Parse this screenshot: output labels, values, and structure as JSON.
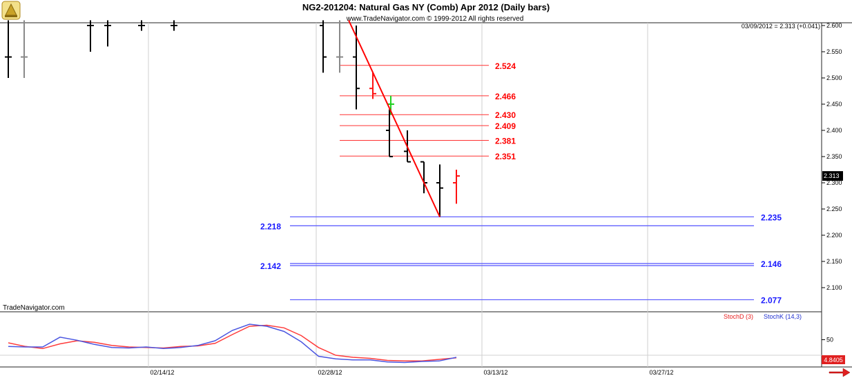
{
  "chart_data": {
    "type": "bar",
    "title": "NG2-201204:  Natural Gas NY (Comb) Apr 2012  (Daily bars)",
    "copyright": "www.TradeNavigator.com © 1999-2012 All rights reserved",
    "watermark": "TradeNavigator.com",
    "last_quote": "03/09/2012 = 2.313 (+0.041)",
    "current_price_label": "2.313",
    "y_ticks": [
      "2.600",
      "2.550",
      "2.500",
      "2.450",
      "2.400",
      "2.350",
      "2.300",
      "2.250",
      "2.200",
      "2.150",
      "2.100"
    ],
    "ylim": [
      2.07,
      2.61
    ],
    "x_ticks": [
      "02/14/12",
      "02/28/12",
      "03/13/12",
      "03/27/12"
    ],
    "red_levels": [
      "2.524",
      "2.466",
      "2.430",
      "2.409",
      "2.381",
      "2.351"
    ],
    "blue_levels": [
      "2.235",
      "2.218",
      "2.146",
      "2.142",
      "2.077"
    ],
    "bars": [
      {
        "high": 2.61,
        "low": 2.5,
        "open": 2.54,
        "close": 2.54,
        "color": "black"
      },
      {
        "high": 2.61,
        "low": 2.5,
        "open": 2.54,
        "close": 2.54,
        "color": "gray"
      },
      {
        "high": 2.61,
        "low": 2.55,
        "open": 2.6,
        "close": 2.6,
        "color": "black"
      },
      {
        "high": 2.61,
        "low": 2.56,
        "open": 2.6,
        "close": 2.6,
        "color": "black"
      },
      {
        "high": 2.61,
        "low": 2.59,
        "open": 2.6,
        "close": 2.6,
        "color": "black"
      },
      {
        "high": 2.61,
        "low": 2.59,
        "open": 2.6,
        "close": 2.6,
        "color": "black"
      },
      {
        "high": 2.61,
        "low": 2.51,
        "open": 2.6,
        "close": 2.54,
        "color": "black"
      },
      {
        "high": 2.61,
        "low": 2.51,
        "open": 2.54,
        "close": 2.54,
        "color": "gray"
      },
      {
        "high": 2.6,
        "low": 2.44,
        "open": 2.54,
        "close": 2.48,
        "color": "black"
      },
      {
        "high": 2.51,
        "low": 2.46,
        "open": 2.48,
        "close": 2.47,
        "color": "red"
      },
      {
        "high": 2.466,
        "low": 2.43,
        "open": 2.45,
        "close": 2.45,
        "color": "green"
      },
      {
        "high": 2.44,
        "low": 2.35,
        "open": 2.4,
        "close": 2.35,
        "color": "black"
      },
      {
        "high": 2.4,
        "low": 2.34,
        "open": 2.36,
        "close": 2.34,
        "color": "black"
      },
      {
        "high": 2.34,
        "low": 2.28,
        "open": 2.34,
        "close": 2.3,
        "color": "black"
      },
      {
        "high": 2.335,
        "low": 2.235,
        "open": 2.3,
        "close": 2.29,
        "color": "black"
      },
      {
        "high": 2.325,
        "low": 2.26,
        "open": 2.3,
        "close": 2.313,
        "color": "red"
      }
    ],
    "trendline": {
      "from": 2.61,
      "to": 2.235,
      "color": "#ff0000"
    },
    "stochastic": {
      "legend": [
        "StochD (3)",
        "StochK (14,3)"
      ],
      "y_ticks": [
        "50"
      ],
      "ylim": [
        0,
        100
      ],
      "value_label": "4.8405",
      "stochD": [
        44,
        37,
        33,
        42,
        48,
        45,
        39,
        36,
        35,
        34,
        37,
        38,
        43,
        60,
        76,
        78,
        73,
        58,
        35,
        20,
        16,
        14,
        10,
        9,
        9,
        12,
        15
      ],
      "stochK": [
        37,
        36,
        36,
        55,
        49,
        41,
        35,
        34,
        36,
        33,
        35,
        39,
        48,
        68,
        80,
        76,
        66,
        46,
        18,
        13,
        11,
        11,
        7,
        6,
        8,
        9,
        16
      ]
    }
  }
}
